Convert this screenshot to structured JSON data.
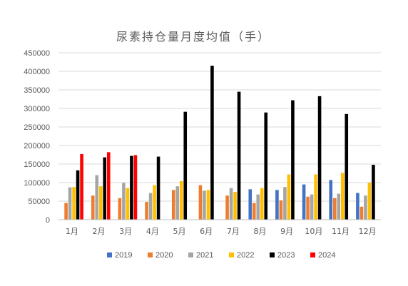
{
  "chart_data": {
    "type": "bar",
    "title": "尿素持仓量月度均值（手）",
    "xlabel": "",
    "ylabel": "",
    "ylim": [
      0,
      450000
    ],
    "yticks": [
      0,
      50000,
      100000,
      150000,
      200000,
      250000,
      300000,
      350000,
      400000,
      450000
    ],
    "ytick_labels": [
      "0",
      "50000",
      "100000",
      "150000",
      "200000",
      "250000",
      "300000",
      "350000",
      "400000",
      "450000"
    ],
    "grid": true,
    "legend_position": "bottom",
    "categories": [
      "1月",
      "2月",
      "3月",
      "4月",
      "5月",
      "6月",
      "7月",
      "8月",
      "9月",
      "10月",
      "11月",
      "12月"
    ],
    "series": [
      {
        "name": "2019",
        "color": "#4472c4",
        "values": [
          null,
          null,
          null,
          null,
          null,
          null,
          null,
          82000,
          80000,
          95000,
          107000,
          72000
        ]
      },
      {
        "name": "2020",
        "color": "#ed7d31",
        "values": [
          45000,
          65000,
          58000,
          48000,
          80000,
          93000,
          65000,
          45000,
          52000,
          62000,
          58000,
          35000
        ]
      },
      {
        "name": "2021",
        "color": "#a5a5a5",
        "values": [
          87000,
          120000,
          99000,
          72000,
          90000,
          78000,
          85000,
          68000,
          88000,
          68000,
          70000,
          65000
        ]
      },
      {
        "name": "2022",
        "color": "#ffc000",
        "values": [
          88000,
          90000,
          85000,
          93000,
          104000,
          80000,
          75000,
          85000,
          122000,
          122000,
          126000,
          100000
        ]
      },
      {
        "name": "2023",
        "color": "#000000",
        "values": [
          133000,
          168000,
          172000,
          170000,
          291000,
          415000,
          345000,
          289000,
          322000,
          333000,
          285000,
          148000
        ]
      },
      {
        "name": "2024",
        "color": "#ff0000",
        "values": [
          177000,
          182000,
          174000,
          null,
          null,
          null,
          null,
          null,
          null,
          null,
          null,
          null
        ]
      }
    ]
  }
}
